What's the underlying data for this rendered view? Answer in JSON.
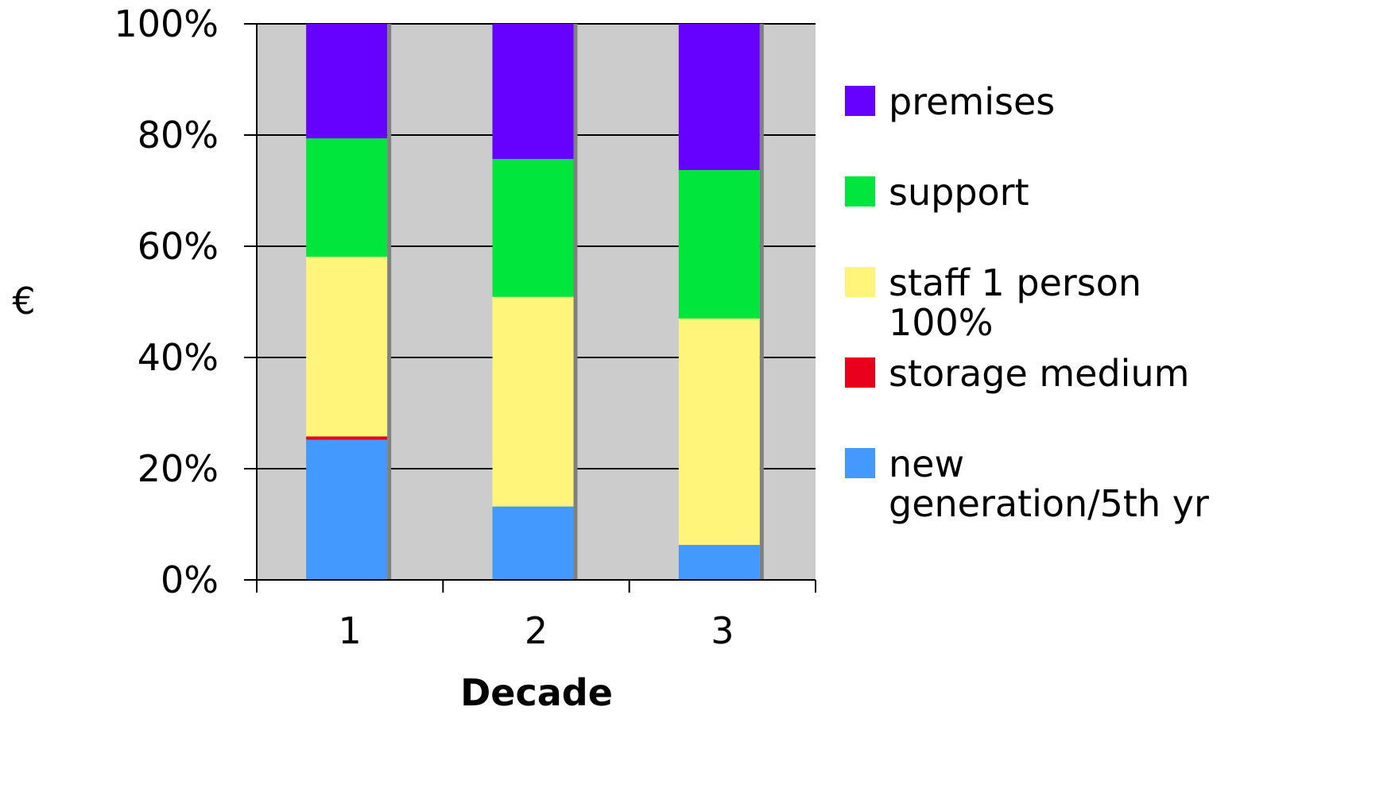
{
  "chart_data": {
    "type": "bar",
    "stacked": true,
    "normalized": true,
    "categories": [
      "1",
      "2",
      "3"
    ],
    "series": [
      {
        "name": "new generation/5th yr",
        "color": "#4499ff",
        "values": [
          25.2,
          13.2,
          6.3
        ]
      },
      {
        "name": "storage medium",
        "color": "#e8001c",
        "values": [
          0.6,
          0,
          0
        ]
      },
      {
        "name": "staff 1 person 100%",
        "color": "#fff57a",
        "values": [
          32.3,
          37.7,
          40.7
        ]
      },
      {
        "name": "support",
        "color": "#00e63c",
        "values": [
          21.3,
          24.8,
          26.7
        ]
      },
      {
        "name": "premises",
        "color": "#6600ff",
        "values": [
          20.6,
          24.3,
          26.3
        ]
      }
    ],
    "legend": [
      {
        "lines": [
          "premises"
        ],
        "color": "#6600ff"
      },
      {
        "lines": [
          "support"
        ],
        "color": "#00e63c"
      },
      {
        "lines": [
          "staff 1 person",
          "100%"
        ],
        "color": "#fff57a"
      },
      {
        "lines": [
          "storage medium"
        ],
        "color": "#e8001c"
      },
      {
        "lines": [
          "new",
          "generation/5th yr"
        ],
        "color": "#4499ff"
      }
    ],
    "y_ticks": [
      "0%",
      "20%",
      "40%",
      "60%",
      "80%",
      "100%"
    ],
    "ylim": [
      0,
      100
    ],
    "xlabel": "Decade",
    "ylabel": "€",
    "grid": true,
    "plot_background": "#cccccc",
    "legend_position": "right"
  }
}
